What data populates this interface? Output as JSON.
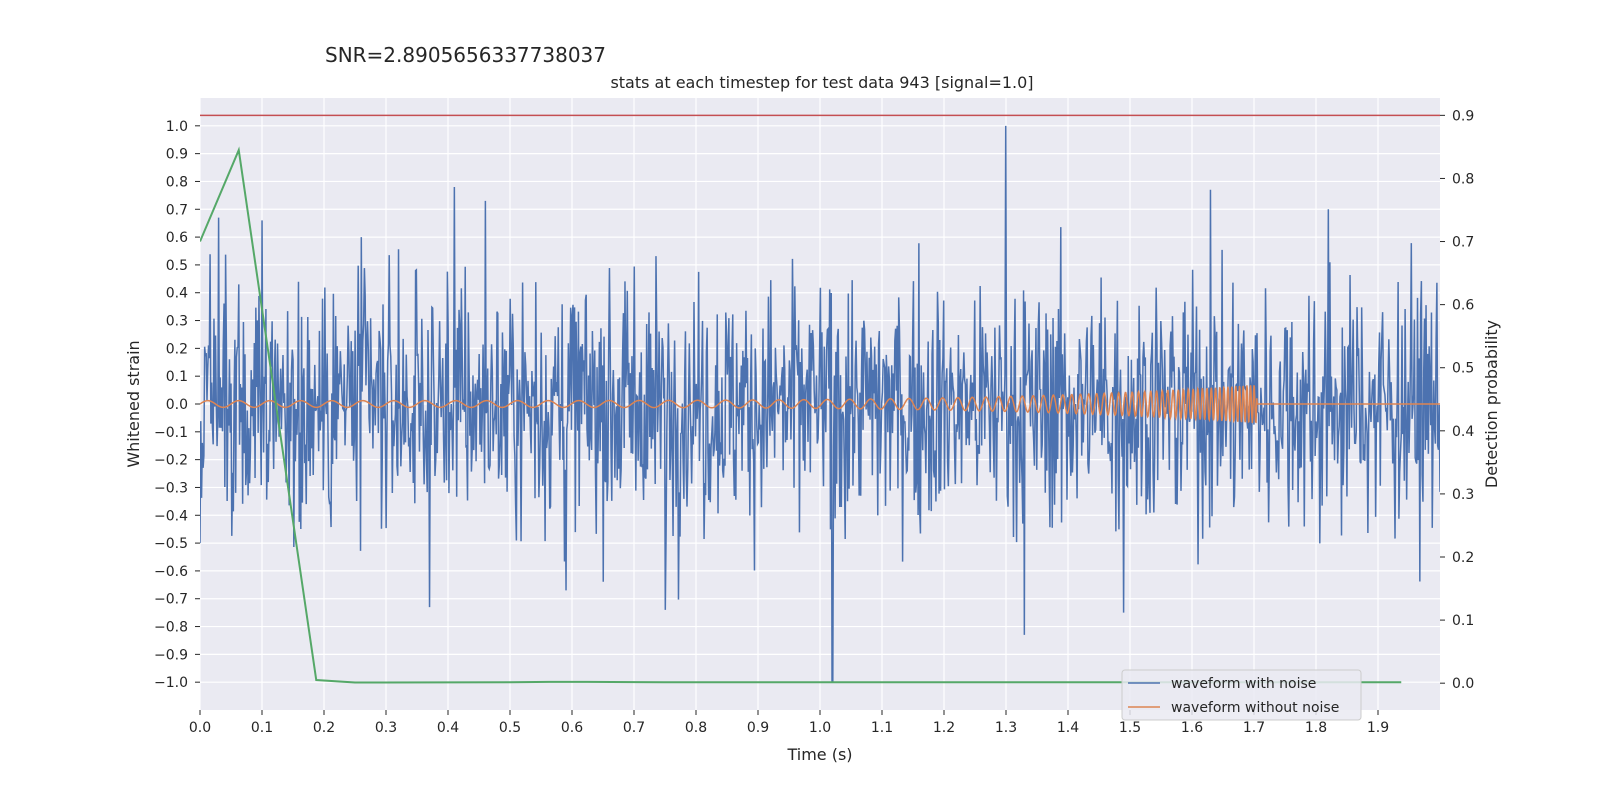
{
  "chart_data": {
    "type": "line",
    "suptitle": "SNR=2.8905656337738037",
    "title": "stats at each timestep for test data 943 [signal=1.0]",
    "xlabel": "Time (s)",
    "ylabel": "Whitened strain",
    "y2label": "Detection probability",
    "xlim": [
      0.0,
      2.0
    ],
    "ylim": [
      -1.1,
      1.1
    ],
    "y2lim": [
      -0.0425,
      0.9275
    ],
    "xticks": [
      0.0,
      0.1,
      0.2,
      0.3,
      0.4,
      0.5,
      0.6,
      0.7,
      0.8,
      0.9,
      1.0,
      1.1,
      1.2,
      1.3,
      1.4,
      1.5,
      1.6,
      1.7,
      1.8,
      1.9
    ],
    "yticks": [
      1.0,
      0.9,
      0.8,
      0.7,
      0.6,
      0.5,
      0.4,
      0.3,
      0.2,
      0.1,
      0.0,
      -0.1,
      -0.2,
      -0.3,
      -0.4,
      -0.5,
      -0.6,
      -0.7,
      -0.8,
      -0.9,
      -1.0
    ],
    "y2ticks": [
      0.9,
      0.8,
      0.7,
      0.6,
      0.5,
      0.4,
      0.3,
      0.2,
      0.1,
      0.0
    ],
    "grid": true,
    "legend_position": "lower-right",
    "colors": {
      "background": "#eaeaf2",
      "grid": "#ffffff",
      "noisy": "#4c72b0",
      "clean": "#dd8452",
      "probability": "#55a868",
      "threshold": "#c44e52"
    },
    "threshold": {
      "y2": 0.9
    },
    "series": [
      {
        "name": "waveform with noise",
        "axis": "left",
        "description_points": {
          "t_range": [
            0.0,
            2.0
          ],
          "peaks": [
            [
              0.0,
              -0.5
            ],
            [
              0.03,
              0.67
            ],
            [
              0.1,
              0.66
            ],
            [
              0.26,
              0.6
            ],
            [
              0.37,
              -0.73
            ],
            [
              0.41,
              0.78
            ],
            [
              0.46,
              0.73
            ],
            [
              0.59,
              -0.67
            ],
            [
              0.75,
              -0.74
            ],
            [
              1.02,
              -1.0
            ],
            [
              1.3,
              1.0
            ],
            [
              1.33,
              -0.83
            ],
            [
              1.49,
              -0.75
            ],
            [
              1.63,
              0.77
            ],
            [
              1.82,
              0.7
            ]
          ],
          "amplitude_rms": 0.22
        }
      },
      {
        "name": "waveform without noise",
        "axis": "left",
        "chirp": {
          "t_start": 0.0,
          "t_merge": 1.705,
          "t_end": 2.0,
          "amp_start": 0.012,
          "amp_merge": 0.07,
          "f_start": 20,
          "f_merge": 180
        }
      },
      {
        "name": "",
        "axis": "right",
        "x": [
          0.0,
          0.0625,
          0.1875,
          0.25,
          0.5,
          0.5625,
          0.625,
          0.75,
          1.0,
          1.25,
          1.5,
          1.75,
          1.9375
        ],
        "values": [
          0.7,
          0.845,
          0.005,
          0.001,
          0.0015,
          0.002,
          0.002,
          0.0015,
          0.0015,
          0.0015,
          0.0015,
          0.0015,
          0.0015
        ]
      }
    ]
  }
}
